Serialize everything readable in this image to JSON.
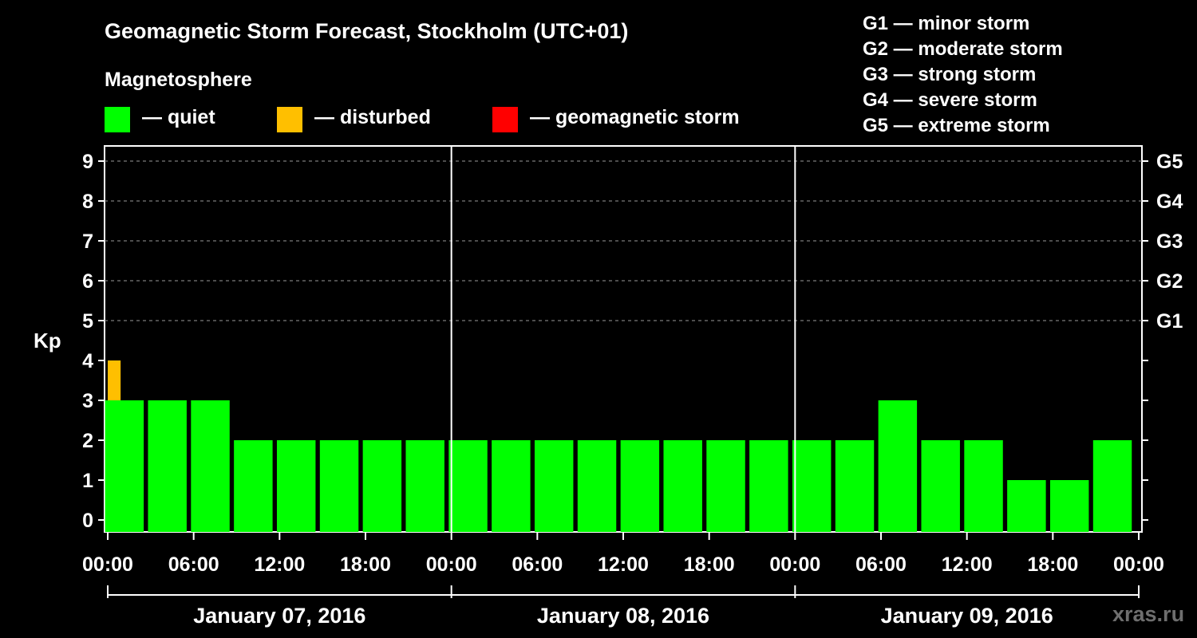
{
  "title": "Geomagnetic Storm Forecast, Stockholm (UTC+01)",
  "magnetosphere_title": "Magnetosphere",
  "legend": [
    {
      "label": "— quiet",
      "color": "#00ff00"
    },
    {
      "label": "— disturbed",
      "color": "#ffbf00"
    },
    {
      "label": "— geomagnetic storm",
      "color": "#ff0000"
    }
  ],
  "storm_levels": [
    "G1 — minor storm",
    "G2 — moderate storm",
    "G3 — strong storm",
    "G4 — severe storm",
    "G5 — extreme storm"
  ],
  "watermark": "xras.ru",
  "colors": {
    "quiet": "#00ff00",
    "disturbed": "#ffbf00",
    "storm": "#ff0000",
    "background": "#000000",
    "axis": "#ffffff"
  },
  "chart_data": {
    "type": "bar",
    "ylabel": "Kp",
    "ylim": [
      0,
      9
    ],
    "yticks": [
      "0",
      "1",
      "2",
      "3",
      "4",
      "5",
      "6",
      "7",
      "8",
      "9"
    ],
    "right_ticks": [
      {
        "kp": 5,
        "label": "G1"
      },
      {
        "kp": 6,
        "label": "G2"
      },
      {
        "kp": 7,
        "label": "G3"
      },
      {
        "kp": 8,
        "label": "G4"
      },
      {
        "kp": 9,
        "label": "G5"
      }
    ],
    "grid": "dashed horizontal at Kp 5-9",
    "x_tick_labels": [
      "00:00",
      "06:00",
      "12:00",
      "18:00",
      "00:00",
      "06:00",
      "12:00",
      "18:00",
      "00:00",
      "06:00",
      "12:00",
      "18:00",
      "00:00"
    ],
    "days": [
      "January 07, 2016",
      "January 08, 2016",
      "January 09, 2016"
    ],
    "interval_hours": 3,
    "values": [
      4,
      3,
      3,
      3,
      2,
      2,
      2,
      2,
      2,
      2,
      2,
      2,
      2,
      2,
      2,
      2,
      2,
      2,
      2,
      3,
      2,
      2,
      1,
      1,
      2
    ],
    "categories": [
      "disturbed",
      "quiet",
      "quiet",
      "quiet",
      "quiet",
      "quiet",
      "quiet",
      "quiet",
      "quiet",
      "quiet",
      "quiet",
      "quiet",
      "quiet",
      "quiet",
      "quiet",
      "quiet",
      "quiet",
      "quiet",
      "quiet",
      "quiet",
      "quiet",
      "quiet",
      "quiet",
      "quiet",
      "quiet"
    ]
  }
}
